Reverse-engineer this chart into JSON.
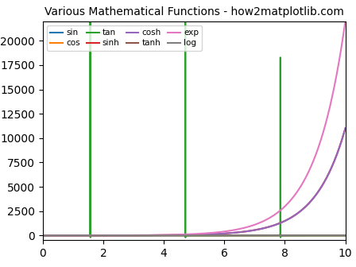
{
  "title": "Various Mathematical Functions - how2matplotlib.com",
  "xlim": [
    0,
    10
  ],
  "ylim": [
    -500,
    22000
  ],
  "legend_ncol": 4,
  "colors": {
    "sin": "#1f77b4",
    "cos": "#ff7f0e",
    "tan": "#2ca02c",
    "sinh": "#d62728",
    "cosh": "#9467bd",
    "tanh": "#8c564b",
    "exp": "#e377c2",
    "log": "#7f7f7f"
  },
  "title_fontsize": 10,
  "legend_fontsize": 7.5,
  "figsize": [
    4.48,
    3.36
  ],
  "dpi": 100
}
